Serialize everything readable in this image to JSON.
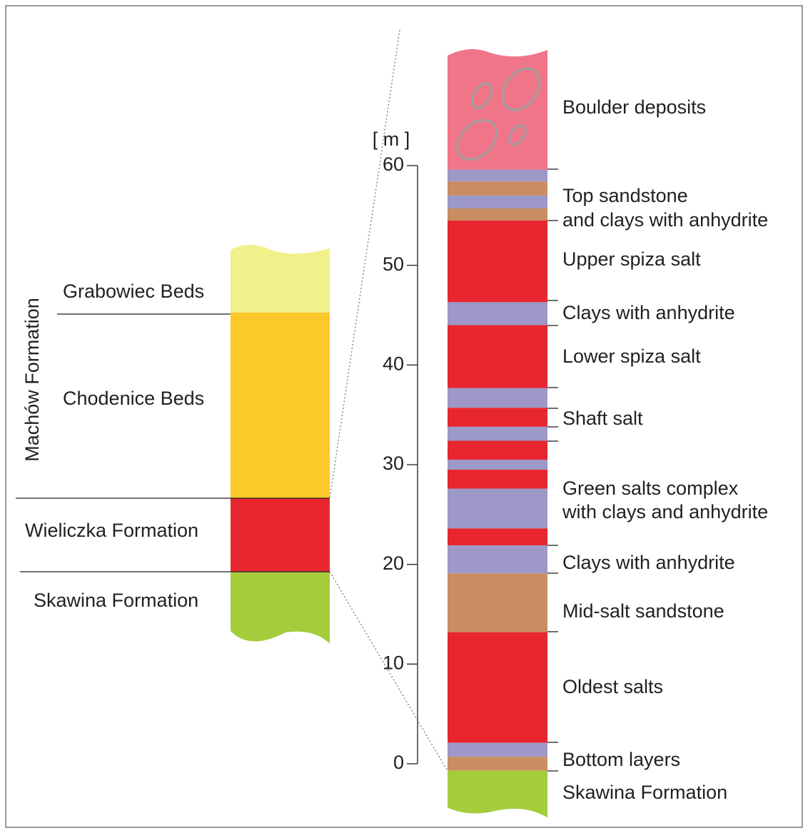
{
  "left_column": {
    "group": "Machów Formation",
    "units": [
      "Grabowiec Beds",
      "Chodenice Beds",
      "Wieliczka Formation",
      "Skawina Formation"
    ]
  },
  "scale": {
    "unit": "[ m ]",
    "range": [
      0,
      60
    ],
    "ticks": [
      0,
      10,
      20,
      30,
      40,
      50,
      60
    ]
  },
  "layers": [
    {
      "bottom": 59.6,
      "top": 71.6,
      "color": "#f07589"
    },
    {
      "bottom": 58.4,
      "top": 59.6,
      "color": "#9d98c8"
    },
    {
      "bottom": 57.0,
      "top": 58.4,
      "color": "#c98d61"
    },
    {
      "bottom": 55.7,
      "top": 57.0,
      "color": "#9d98c8"
    },
    {
      "bottom": 54.5,
      "top": 55.7,
      "color": "#c98d61"
    },
    {
      "bottom": 46.3,
      "top": 54.5,
      "color": "#e8262f"
    },
    {
      "bottom": 44.0,
      "top": 46.3,
      "color": "#9d98c8"
    },
    {
      "bottom": 37.7,
      "top": 44.0,
      "color": "#e8262f"
    },
    {
      "bottom": 35.7,
      "top": 37.7,
      "color": "#9d98c8"
    },
    {
      "bottom": 33.8,
      "top": 35.7,
      "color": "#e8262f"
    },
    {
      "bottom": 32.4,
      "top": 33.8,
      "color": "#9d98c8"
    },
    {
      "bottom": 30.5,
      "top": 32.4,
      "color": "#e8262f"
    },
    {
      "bottom": 29.5,
      "top": 30.5,
      "color": "#9d98c8"
    },
    {
      "bottom": 27.6,
      "top": 29.5,
      "color": "#e8262f"
    },
    {
      "bottom": 23.6,
      "top": 27.6,
      "color": "#9d98c8"
    },
    {
      "bottom": 21.9,
      "top": 23.6,
      "color": "#e8262f"
    },
    {
      "bottom": 19.1,
      "top": 21.9,
      "color": "#9d98c8"
    },
    {
      "bottom": 13.2,
      "top": 19.1,
      "color": "#c98d61"
    },
    {
      "bottom": 2.1,
      "top": 13.2,
      "color": "#e8262f"
    },
    {
      "bottom": 0.7,
      "top": 2.1,
      "color": "#9d98c8"
    },
    {
      "bottom": -0.7,
      "top": 0.7,
      "color": "#c98d61"
    },
    {
      "bottom": -5.4,
      "top": -0.7,
      "color": "#a4cd3c"
    }
  ],
  "labels": [
    {
      "lines": [
        "Boulder deposits"
      ]
    },
    {
      "lines": [
        "Top sandstone",
        "and clays with anhydrite"
      ]
    },
    {
      "lines": [
        "Upper spiza salt"
      ]
    },
    {
      "lines": [
        "Clays with anhydrite"
      ]
    },
    {
      "lines": [
        "Lower spiza salt"
      ]
    },
    {
      "lines": [
        "Shaft salt"
      ]
    },
    {
      "lines": [
        "Green salts complex",
        "with clays and anhydrite"
      ]
    },
    {
      "lines": [
        "Clays with anhydrite"
      ]
    },
    {
      "lines": [
        "Mid-salt sandstone"
      ]
    },
    {
      "lines": [
        "Oldest salts"
      ]
    },
    {
      "lines": [
        "Bottom layers"
      ]
    },
    {
      "lines": [
        "Skawina Formation"
      ]
    }
  ]
}
